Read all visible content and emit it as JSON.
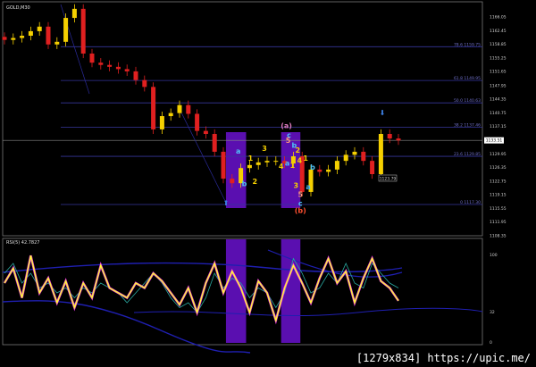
{
  "chart_data": [
    {
      "type": "candlestick",
      "title": "GOLD,M30",
      "y_ticks": [
        "1166.05",
        "1162.45",
        "1158.85",
        "1155.25",
        "1151.65",
        "1147.95",
        "1144.35",
        "1140.75",
        "1137.15",
        "1129.95",
        "1126.35",
        "1122.75",
        "1119.15",
        "1115.55",
        "1111.95",
        "1108.35"
      ],
      "ylim": [
        1108.35,
        1166.05
      ],
      "current_price": "1133.51",
      "price_label": "1123.79",
      "closes": [
        1160,
        1160.5,
        1161.1,
        1162.3,
        1163.5,
        1158.8,
        1159.5,
        1165.8,
        1168.2,
        1156.4,
        1154.0,
        1153.4,
        1152.9,
        1152.3,
        1151.7,
        1149.4,
        1147.6,
        1136.4,
        1139.9,
        1140.7,
        1142.8,
        1140.5,
        1136.0,
        1135.2,
        1130.5,
        1123.4,
        1122.2,
        1126.2,
        1127.0,
        1127.7,
        1128.1,
        1128.1,
        1127.4,
        1129.3,
        1119.9,
        1125.8,
        1125.2,
        1125.8,
        1128.1,
        1129.7,
        1130.5,
        1128.1,
        1124.6,
        1135.2,
        1134.0,
        1133.5
      ],
      "fib_levels": [
        {
          "label": "78.6 1159.75",
          "price": 1158.2
        },
        {
          "label": "61.8 1149.95",
          "price": 1149.3
        },
        {
          "label": "50.0 1140.63",
          "price": 1143.4
        },
        {
          "label": "38.2 1137.46",
          "price": 1137.0
        },
        {
          "label": "23.6 1129.85",
          "price": 1129.3
        },
        {
          "label": "0 1117.30",
          "price": 1116.6
        }
      ],
      "wave_labels": [
        {
          "text": "a",
          "color": "#4fc3f7",
          "bar": 26.7,
          "price": 1130.0
        },
        {
          "text": "b",
          "color": "#4fc3f7",
          "bar": 27.4,
          "price": 1121.4
        },
        {
          "text": "1",
          "color": "#f5d000",
          "bar": 28.1,
          "price": 1128.1
        },
        {
          "text": "2",
          "color": "#f5d000",
          "bar": 28.6,
          "price": 1122.0
        },
        {
          "text": "3",
          "color": "#f5d000",
          "bar": 29.7,
          "price": 1130.7
        },
        {
          "text": "4",
          "color": "#f5d000",
          "bar": 31.6,
          "price": 1126.0
        },
        {
          "text": "(a)",
          "color": "#e07cc0",
          "bar": 32.2,
          "price": 1136.7
        },
        {
          "text": "c",
          "color": "#4fc3f7",
          "bar": 32.5,
          "price": 1134.3
        },
        {
          "text": "5",
          "color": "#ff9a7a",
          "bar": 32.4,
          "price": 1132.9
        },
        {
          "text": "b",
          "color": "#4fc3f7",
          "bar": 33.1,
          "price": 1131.5
        },
        {
          "text": "2",
          "color": "#f5d000",
          "bar": 33.5,
          "price": 1130.3
        },
        {
          "text": "a",
          "color": "#4fc3f7",
          "bar": 32.3,
          "price": 1126.8
        },
        {
          "text": "1",
          "color": "#f5d000",
          "bar": 32.9,
          "price": 1126.3
        },
        {
          "text": "4",
          "color": "#f5d000",
          "bar": 33.7,
          "price": 1127.5
        },
        {
          "text": "3",
          "color": "#f5d000",
          "bar": 33.3,
          "price": 1120.9
        },
        {
          "text": "5",
          "color": "#ff9a7a",
          "bar": 33.8,
          "price": 1118.6
        },
        {
          "text": "c",
          "color": "#4fc3f7",
          "bar": 33.8,
          "price": 1116.2
        },
        {
          "text": "(b)",
          "color": "#ff5030",
          "bar": 33.8,
          "price": 1114.3
        },
        {
          "text": "1",
          "color": "#f5d000",
          "bar": 34.4,
          "price": 1128.1
        },
        {
          "text": "b",
          "color": "#4fc3f7",
          "bar": 35.2,
          "price": 1125.8
        },
        {
          "text": "a",
          "color": "#4fc3f7",
          "bar": 34.7,
          "price": 1120.6
        }
      ],
      "colors": {
        "up": "#f5d000",
        "down": "#e02020",
        "fib": "#35359a",
        "highlight": "#5a0fb0"
      }
    },
    {
      "type": "line",
      "title": "RSI(5) 42.7827",
      "y_ticks": [
        "100",
        "32",
        "0"
      ],
      "ylim": [
        0,
        100
      ],
      "series": [
        {
          "color": "#ffff30",
          "values": [
            60,
            75,
            45,
            88,
            50,
            65,
            40,
            62,
            35,
            60,
            45,
            78,
            55,
            50,
            45,
            60,
            55,
            70,
            62,
            50,
            38,
            55,
            30,
            60,
            80,
            50,
            72,
            55,
            30,
            62,
            50,
            22,
            55,
            78,
            60,
            40,
            65,
            85,
            60,
            72,
            40,
            65,
            85,
            62,
            55,
            42
          ]
        },
        {
          "color": "#2aa8a0",
          "values": [
            70,
            80,
            60,
            70,
            55,
            60,
            50,
            55,
            45,
            55,
            50,
            60,
            55,
            50,
            40,
            50,
            60,
            70,
            60,
            45,
            35,
            40,
            30,
            45,
            70,
            55,
            65,
            60,
            45,
            55,
            50,
            35,
            50,
            85,
            70,
            50,
            55,
            70,
            60,
            80,
            60,
            55,
            80,
            70,
            60,
            55
          ]
        }
      ],
      "highlight_bars": [
        [
          25.3,
          27.6
        ],
        [
          31.6,
          33.8
        ]
      ]
    }
  ],
  "watermark": "[1279x834] https://upic.me/"
}
